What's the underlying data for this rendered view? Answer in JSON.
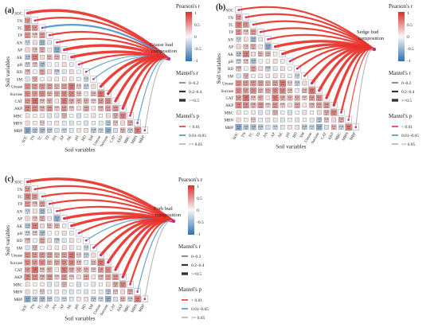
{
  "variables": [
    "SOC",
    "TN",
    "TC",
    "TP",
    "AN",
    "AP",
    "AK",
    "pH",
    "BD",
    "SM",
    "Urease",
    "Sucrase",
    "CAT",
    "AKP",
    "MBC",
    "MBN",
    "MBP"
  ],
  "axis": {
    "xlabel": "Soil variables",
    "ylabel": "Soil variables"
  },
  "legend": {
    "pearson": {
      "title": "Pearson's r",
      "ticks": [
        "1",
        "0.5",
        "0",
        "-0.5",
        "-1"
      ],
      "range": [
        -1,
        1
      ],
      "pos_color": "#d7302a",
      "neg_color": "#2f71b0",
      "mid_color": "#f7f7f7"
    },
    "mantel_r": {
      "title": "Mantel's r",
      "items": [
        "0–0.2",
        "0.2–0.4",
        ">=0.5"
      ]
    },
    "mantel_p": {
      "title": "Mantel's p",
      "items": [
        "< 0.01",
        "0.01–0.05",
        ">= 0.05"
      ],
      "colors": [
        "#e8312a",
        "#4e93c6",
        "#b0b0b0"
      ]
    }
  },
  "chart_data": [
    {
      "type": "heatmap",
      "panel_label": "(a)",
      "title": "Grasse bud composition",
      "x": [
        "SOC",
        "TN",
        "TC",
        "TP",
        "AN",
        "AP",
        "AK",
        "pH",
        "BD",
        "SM",
        "Urease",
        "Sucrase",
        "CAT",
        "AKP",
        "MBC",
        "MBN",
        "MBP"
      ],
      "y": [
        "SOC",
        "TN",
        "TC",
        "TP",
        "AN",
        "AP",
        "AK",
        "pH",
        "BD",
        "SM",
        "Urease",
        "Sucrase",
        "CAT",
        "AKP",
        "MBC",
        "MBN",
        "MBP"
      ],
      "matrix": [
        [],
        [
          0.44
        ],
        [
          0.59,
          0.47
        ],
        [
          0.47,
          0.26,
          0.45
        ],
        [
          -0.22,
          0.14,
          -0.41,
          -0.12
        ],
        [
          0.19,
          0.26,
          0.37,
          0.12,
          -0.53
        ],
        [
          -0.3,
          0.58,
          0.16,
          0.31,
          0.32,
          0.07
        ],
        [
          -0.21,
          0.23,
          -0.39,
          -0.05,
          0.07,
          0.14,
          -0.08
        ],
        [
          0.29,
          -0.05,
          0.41,
          0.18,
          -0.26,
          -0.14,
          0.15,
          -0.02
        ],
        [
          -0.16,
          0.32,
          -0.05,
          0.1,
          0.1,
          0.13,
          0.12,
          -0.07,
          -0.2
        ],
        [
          0.51,
          0.45,
          0.47,
          0.43,
          0.31,
          0.41,
          0.64,
          0.2,
          -0.26,
          0.16
        ],
        [
          0.51,
          0.43,
          0.51,
          0.33,
          0.37,
          0.52,
          0.54,
          0.28,
          -0.1,
          0.3,
          0.63
        ],
        [
          0.43,
          0.66,
          0.28,
          0.37,
          0.1,
          0.61,
          0.38,
          0.33,
          0.35,
          0.22,
          0.44,
          0.51
        ],
        [
          0.56,
          0.53,
          0.36,
          0.48,
          0.22,
          0.47,
          0.22,
          0.15,
          0.4,
          0.1,
          0.32,
          0.41,
          0.48
        ],
        [
          0.12,
          0.04,
          0.08,
          -0.17,
          -0.13,
          0.31,
          -0.02,
          -0.19,
          -0.04,
          0.13,
          0.02,
          0.15,
          0.36,
          0.56
        ],
        [
          0.15,
          0.07,
          0.22,
          -0.09,
          0.13,
          -0.12,
          -0.15,
          -0.08,
          -0.16,
          0.05,
          -0.12,
          -0.31,
          0.24,
          0.17,
          0.36
        ],
        [
          -0.55,
          -0.32,
          -0.38,
          -0.28,
          -0.19,
          -0.21,
          -0.13,
          0.12,
          0.14,
          -0.28,
          -0.21,
          -0.48,
          -0.18,
          0.32,
          -0.24,
          0.6
        ]
      ],
      "links": [
        {
          "to": "SOC",
          "p": "<0.01",
          "r": ">=0.5"
        },
        {
          "to": "TN",
          "p": "<0.01",
          "r": "0.2-0.4"
        },
        {
          "to": "TC",
          "p": "0.01-0.05",
          "r": "0.2-0.4"
        },
        {
          "to": "TP",
          "p": "<0.01",
          "r": "0.2-0.4"
        },
        {
          "to": "AN",
          "p": "<0.01",
          "r": "0.2-0.4"
        },
        {
          "to": "AP",
          "p": "<0.01",
          "r": ">=0.5"
        },
        {
          "to": "AK",
          "p": "<0.01",
          "r": ">=0.5"
        },
        {
          "to": "pH",
          "p": "<0.01",
          "r": "0.2-0.4"
        },
        {
          "to": "BD",
          "p": "0.01-0.05",
          "r": "0-0.2"
        },
        {
          "to": "SM",
          "p": "0.01-0.05",
          "r": "0-0.2"
        },
        {
          "to": "Urease",
          "p": "<0.01",
          "r": ">=0.5"
        },
        {
          "to": "Sucrase",
          "p": "<0.01",
          "r": ">=0.5"
        },
        {
          "to": "CAT",
          "p": "<0.01",
          "r": ">=0.5"
        },
        {
          "to": "AKP",
          "p": "<0.01",
          "r": ">=0.5"
        },
        {
          "to": "MBC",
          "p": "<0.01",
          "r": "0.2-0.4"
        },
        {
          "to": "MBN",
          "p": "0.01-0.05",
          "r": "0-0.2"
        },
        {
          "to": "MBP",
          "p": ">=0.05",
          "r": "0-0.2"
        }
      ]
    },
    {
      "type": "heatmap",
      "panel_label": "(b)",
      "title": "Sedge bud composition",
      "x": [
        "SOC",
        "TN",
        "TC",
        "TP",
        "AN",
        "AP",
        "AK",
        "pH",
        "BD",
        "SM",
        "Urease",
        "Sucrase",
        "CAT",
        "AKP",
        "MBC",
        "MBN",
        "MBP"
      ],
      "y": [
        "SOC",
        "TN",
        "TC",
        "TP",
        "AN",
        "AP",
        "AK",
        "pH",
        "BD",
        "SM",
        "Urease",
        "Sucrase",
        "CAT",
        "AKP",
        "MBC",
        "MBN",
        "MBP"
      ],
      "matrix": [
        [],
        [
          0.44
        ],
        [
          0.59,
          0.47
        ],
        [
          0.47,
          0.26,
          0.45
        ],
        [
          -0.22,
          0.14,
          -0.41,
          -0.12
        ],
        [
          0.19,
          0.26,
          0.37,
          0.12,
          -0.53
        ],
        [
          -0.3,
          0.58,
          0.16,
          0.31,
          0.32,
          0.07
        ],
        [
          -0.21,
          0.23,
          -0.39,
          -0.05,
          0.07,
          0.14,
          -0.08
        ],
        [
          0.29,
          -0.05,
          0.41,
          0.18,
          -0.26,
          -0.14,
          0.15,
          -0.02
        ],
        [
          -0.16,
          0.32,
          -0.05,
          0.1,
          0.1,
          0.13,
          0.12,
          -0.07,
          -0.2
        ],
        [
          0.51,
          0.45,
          0.47,
          0.43,
          0.31,
          0.41,
          0.64,
          0.2,
          -0.26,
          0.16
        ],
        [
          0.51,
          0.43,
          0.51,
          0.33,
          0.37,
          0.52,
          0.54,
          0.28,
          -0.1,
          0.3,
          0.63
        ],
        [
          0.43,
          0.66,
          0.28,
          0.37,
          0.1,
          0.61,
          0.38,
          0.33,
          0.35,
          0.22,
          0.44,
          0.51
        ],
        [
          0.56,
          0.53,
          0.36,
          0.48,
          0.22,
          0.47,
          0.22,
          0.15,
          0.4,
          0.1,
          0.32,
          0.41,
          0.48
        ],
        [
          0.12,
          0.04,
          0.08,
          -0.17,
          -0.13,
          0.31,
          -0.02,
          -0.19,
          -0.04,
          0.13,
          0.02,
          0.15,
          0.36,
          0.56
        ],
        [
          0.15,
          0.07,
          0.22,
          -0.09,
          0.13,
          -0.12,
          -0.15,
          -0.08,
          -0.16,
          0.05,
          -0.12,
          -0.31,
          0.24,
          0.17,
          0.36
        ],
        [
          -0.55,
          -0.32,
          -0.38,
          -0.28,
          -0.19,
          -0.21,
          -0.13,
          0.12,
          0.14,
          -0.28,
          -0.21,
          -0.48,
          -0.18,
          0.32,
          -0.24,
          0.6
        ]
      ],
      "links": [
        {
          "to": "SOC",
          "p": "<0.01",
          "r": "0.2-0.4"
        },
        {
          "to": "TN",
          "p": "<0.01",
          "r": "0.2-0.4"
        },
        {
          "to": "TC",
          "p": "<0.01",
          "r": "0.2-0.4"
        },
        {
          "to": "TP",
          "p": "<0.01",
          "r": "0.2-0.4"
        },
        {
          "to": "AN",
          "p": "<0.01",
          "r": "0.2-0.4"
        },
        {
          "to": "AP",
          "p": "<0.01",
          "r": ">=0.5"
        },
        {
          "to": "AK",
          "p": "<0.01",
          "r": ">=0.5"
        },
        {
          "to": "pH",
          "p": "<0.01",
          "r": "0.2-0.4"
        },
        {
          "to": "BD",
          "p": "<0.01",
          "r": "0.2-0.4"
        },
        {
          "to": "SM",
          "p": "<0.01",
          "r": "0.2-0.4"
        },
        {
          "to": "Urease",
          "p": "<0.01",
          "r": ">=0.5"
        },
        {
          "to": "Sucrase",
          "p": "<0.01",
          "r": ">=0.5"
        },
        {
          "to": "CAT",
          "p": "<0.01",
          "r": ">=0.5"
        },
        {
          "to": "AKP",
          "p": "<0.01",
          "r": ">=0.5"
        },
        {
          "to": "MBC",
          "p": "<0.01",
          "r": "0.2-0.4"
        },
        {
          "to": "MBN",
          "p": "<0.01",
          "r": "0-0.2"
        },
        {
          "to": "MBP",
          "p": ">=0.05",
          "r": "0-0.2"
        }
      ]
    },
    {
      "type": "heatmap",
      "panel_label": "(c)",
      "title": "Forb bud composition",
      "x": [
        "SOC",
        "TN",
        "TC",
        "TP",
        "AN",
        "AP",
        "AK",
        "pH",
        "BD",
        "SM",
        "Urease",
        "Sucrase",
        "CAT",
        "AKP",
        "MBC",
        "MBN",
        "MBP"
      ],
      "y": [
        "SOC",
        "TN",
        "TC",
        "TP",
        "AN",
        "AP",
        "AK",
        "pH",
        "BD",
        "SM",
        "Urease",
        "Sucrase",
        "CAT",
        "AKP",
        "MBC",
        "MBN",
        "MBP"
      ],
      "matrix": [
        [],
        [
          0.44
        ],
        [
          0.59,
          0.47
        ],
        [
          0.47,
          0.26,
          0.45
        ],
        [
          -0.22,
          0.14,
          -0.41,
          -0.12
        ],
        [
          0.19,
          0.26,
          0.37,
          0.12,
          -0.53
        ],
        [
          -0.3,
          0.58,
          0.16,
          0.31,
          0.32,
          0.07
        ],
        [
          -0.21,
          0.23,
          -0.39,
          -0.05,
          0.07,
          0.14,
          -0.08
        ],
        [
          0.29,
          -0.05,
          0.41,
          0.18,
          -0.26,
          -0.14,
          0.15,
          -0.02
        ],
        [
          -0.16,
          0.32,
          -0.05,
          0.1,
          0.1,
          0.13,
          0.12,
          -0.07,
          -0.2
        ],
        [
          0.51,
          0.45,
          0.47,
          0.43,
          0.31,
          0.41,
          0.64,
          0.2,
          -0.26,
          0.16
        ],
        [
          0.51,
          0.43,
          0.51,
          0.33,
          0.37,
          0.52,
          0.54,
          0.28,
          -0.1,
          0.3,
          0.63
        ],
        [
          0.43,
          0.66,
          0.28,
          0.37,
          0.1,
          0.61,
          0.38,
          0.33,
          0.35,
          0.22,
          0.44,
          0.51
        ],
        [
          0.56,
          0.53,
          0.36,
          0.48,
          0.22,
          0.47,
          0.22,
          0.15,
          0.4,
          0.1,
          0.32,
          0.41,
          0.48
        ],
        [
          0.12,
          0.04,
          0.08,
          -0.17,
          -0.13,
          0.31,
          -0.02,
          -0.19,
          -0.04,
          0.13,
          0.02,
          0.15,
          0.36,
          0.56
        ],
        [
          0.15,
          0.07,
          0.22,
          -0.09,
          0.13,
          -0.12,
          -0.15,
          -0.08,
          -0.16,
          0.05,
          -0.12,
          -0.31,
          0.24,
          0.17,
          0.36
        ],
        [
          -0.55,
          -0.32,
          -0.38,
          -0.28,
          -0.19,
          -0.21,
          -0.13,
          0.12,
          0.14,
          -0.28,
          -0.21,
          -0.48,
          -0.18,
          0.32,
          -0.24,
          0.6
        ]
      ],
      "links": [
        {
          "to": "SOC",
          "p": "<0.01",
          "r": ">=0.5"
        },
        {
          "to": "TN",
          "p": "<0.01",
          "r": "0.2-0.4"
        },
        {
          "to": "TC",
          "p": "<0.01",
          "r": "0.2-0.4"
        },
        {
          "to": "TP",
          "p": "<0.01",
          "r": "0.2-0.4"
        },
        {
          "to": "AN",
          "p": "<0.01",
          "r": "0.2-0.4"
        },
        {
          "to": "AP",
          "p": "<0.01",
          "r": ">=0.5"
        },
        {
          "to": "AK",
          "p": "<0.01",
          "r": ">=0.5"
        },
        {
          "to": "pH",
          "p": "<0.01",
          "r": "0.2-0.4"
        },
        {
          "to": "BD",
          "p": "0.01-0.05",
          "r": "0-0.2"
        },
        {
          "to": "SM",
          "p": "<0.01",
          "r": "0.2-0.4"
        },
        {
          "to": "Urease",
          "p": "<0.01",
          "r": ">=0.5"
        },
        {
          "to": "Sucrase",
          "p": "<0.01",
          "r": ">=0.5"
        },
        {
          "to": "CAT",
          "p": "<0.01",
          "r": ">=0.5"
        },
        {
          "to": "AKP",
          "p": "<0.01",
          "r": ">=0.5"
        },
        {
          "to": "MBC",
          "p": "<0.01",
          "r": "0.2-0.4"
        },
        {
          "to": "MBN",
          "p": "0.01-0.05",
          "r": "0-0.2"
        },
        {
          "to": "MBP",
          "p": ">=0.05",
          "r": "0-0.2"
        }
      ]
    }
  ]
}
